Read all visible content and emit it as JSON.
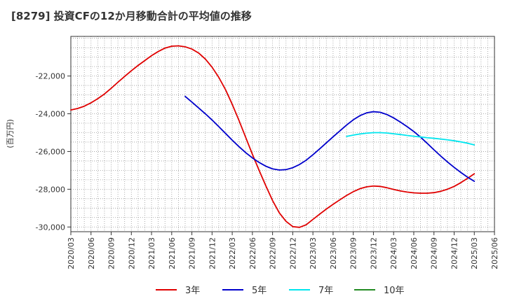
{
  "chart_data": {
    "type": "line",
    "title": "[8279]  投資CFの12か月移動合計の平均値の推移",
    "ylabel": "(百万円)",
    "xlabel": "",
    "ylim": [
      -30250,
      -19900
    ],
    "yticks": [
      -22000,
      -24000,
      -26000,
      -28000,
      -30000
    ],
    "ytick_labels": [
      "-22,000",
      "-24,000",
      "-26,000",
      "-28,000",
      "-30,000"
    ],
    "xticks": [
      "2020/03",
      "2020/06",
      "2020/09",
      "2020/12",
      "2021/03",
      "2021/06",
      "2021/09",
      "2021/12",
      "2022/03",
      "2022/06",
      "2022/09",
      "2022/12",
      "2023/03",
      "2023/06",
      "2023/09",
      "2023/12",
      "2024/03",
      "2024/06",
      "2024/09",
      "2024/12",
      "2025/03",
      "2025/06"
    ],
    "grid": true,
    "legend_position": "bottom",
    "series": [
      {
        "name": "3年",
        "color": "#e00000",
        "points": [
          [
            "2020/03",
            -23800
          ],
          [
            "2020/04",
            -23720
          ],
          [
            "2020/05",
            -23600
          ],
          [
            "2020/06",
            -23420
          ],
          [
            "2020/07",
            -23200
          ],
          [
            "2020/08",
            -22950
          ],
          [
            "2020/09",
            -22650
          ],
          [
            "2020/10",
            -22330
          ],
          [
            "2020/11",
            -22020
          ],
          [
            "2020/12",
            -21720
          ],
          [
            "2021/01",
            -21440
          ],
          [
            "2021/02",
            -21180
          ],
          [
            "2021/03",
            -20920
          ],
          [
            "2021/04",
            -20700
          ],
          [
            "2021/05",
            -20520
          ],
          [
            "2021/06",
            -20420
          ],
          [
            "2021/07",
            -20400
          ],
          [
            "2021/08",
            -20450
          ],
          [
            "2021/09",
            -20570
          ],
          [
            "2021/10",
            -20780
          ],
          [
            "2021/11",
            -21100
          ],
          [
            "2021/12",
            -21530
          ],
          [
            "2022/01",
            -22070
          ],
          [
            "2022/02",
            -22720
          ],
          [
            "2022/03",
            -23500
          ],
          [
            "2022/04",
            -24350
          ],
          [
            "2022/05",
            -25250
          ],
          [
            "2022/06",
            -26150
          ],
          [
            "2022/07",
            -27000
          ],
          [
            "2022/08",
            -27820
          ],
          [
            "2022/09",
            -28600
          ],
          [
            "2022/10",
            -29250
          ],
          [
            "2022/11",
            -29700
          ],
          [
            "2022/12",
            -29980
          ],
          [
            "2023/01",
            -30020
          ],
          [
            "2023/02",
            -29880
          ],
          [
            "2023/03",
            -29600
          ],
          [
            "2023/04",
            -29320
          ],
          [
            "2023/05",
            -29050
          ],
          [
            "2023/06",
            -28800
          ],
          [
            "2023/07",
            -28560
          ],
          [
            "2023/08",
            -28330
          ],
          [
            "2023/09",
            -28130
          ],
          [
            "2023/10",
            -27970
          ],
          [
            "2023/11",
            -27870
          ],
          [
            "2023/12",
            -27830
          ],
          [
            "2024/01",
            -27850
          ],
          [
            "2024/02",
            -27920
          ],
          [
            "2024/03",
            -28010
          ],
          [
            "2024/04",
            -28090
          ],
          [
            "2024/05",
            -28150
          ],
          [
            "2024/06",
            -28190
          ],
          [
            "2024/07",
            -28210
          ],
          [
            "2024/08",
            -28210
          ],
          [
            "2024/09",
            -28180
          ],
          [
            "2024/10",
            -28110
          ],
          [
            "2024/11",
            -28000
          ],
          [
            "2024/12",
            -27850
          ],
          [
            "2025/01",
            -27650
          ],
          [
            "2025/02",
            -27420
          ],
          [
            "2025/03",
            -27180
          ]
        ]
      },
      {
        "name": "5年",
        "color": "#0000cc",
        "points": [
          [
            "2021/08",
            -23080
          ],
          [
            "2021/09",
            -23380
          ],
          [
            "2021/10",
            -23690
          ],
          [
            "2021/11",
            -24000
          ],
          [
            "2021/12",
            -24330
          ],
          [
            "2022/01",
            -24680
          ],
          [
            "2022/02",
            -25040
          ],
          [
            "2022/03",
            -25400
          ],
          [
            "2022/04",
            -25740
          ],
          [
            "2022/05",
            -26060
          ],
          [
            "2022/06",
            -26340
          ],
          [
            "2022/07",
            -26580
          ],
          [
            "2022/08",
            -26780
          ],
          [
            "2022/09",
            -26920
          ],
          [
            "2022/10",
            -26980
          ],
          [
            "2022/11",
            -26960
          ],
          [
            "2022/12",
            -26860
          ],
          [
            "2023/01",
            -26690
          ],
          [
            "2023/02",
            -26460
          ],
          [
            "2023/03",
            -26170
          ],
          [
            "2023/04",
            -25860
          ],
          [
            "2023/05",
            -25540
          ],
          [
            "2023/06",
            -25220
          ],
          [
            "2023/07",
            -24910
          ],
          [
            "2023/08",
            -24600
          ],
          [
            "2023/09",
            -24320
          ],
          [
            "2023/10",
            -24100
          ],
          [
            "2023/11",
            -23950
          ],
          [
            "2023/12",
            -23890
          ],
          [
            "2024/01",
            -23920
          ],
          [
            "2024/02",
            -24040
          ],
          [
            "2024/03",
            -24220
          ],
          [
            "2024/04",
            -24440
          ],
          [
            "2024/05",
            -24680
          ],
          [
            "2024/06",
            -24940
          ],
          [
            "2024/07",
            -25240
          ],
          [
            "2024/08",
            -25570
          ],
          [
            "2024/09",
            -25910
          ],
          [
            "2024/10",
            -26240
          ],
          [
            "2024/11",
            -26550
          ],
          [
            "2024/12",
            -26840
          ],
          [
            "2025/01",
            -27110
          ],
          [
            "2025/02",
            -27360
          ],
          [
            "2025/03",
            -27580
          ]
        ]
      },
      {
        "name": "7年",
        "color": "#00e5ee",
        "points": [
          [
            "2023/08",
            -25200
          ],
          [
            "2023/09",
            -25130
          ],
          [
            "2023/10",
            -25070
          ],
          [
            "2023/11",
            -25030
          ],
          [
            "2023/12",
            -25000
          ],
          [
            "2024/01",
            -25000
          ],
          [
            "2024/02",
            -25020
          ],
          [
            "2024/03",
            -25060
          ],
          [
            "2024/04",
            -25100
          ],
          [
            "2024/05",
            -25150
          ],
          [
            "2024/06",
            -25190
          ],
          [
            "2024/07",
            -25230
          ],
          [
            "2024/08",
            -25270
          ],
          [
            "2024/09",
            -25300
          ],
          [
            "2024/10",
            -25340
          ],
          [
            "2024/11",
            -25380
          ],
          [
            "2024/12",
            -25430
          ],
          [
            "2025/01",
            -25490
          ],
          [
            "2025/02",
            -25560
          ],
          [
            "2025/03",
            -25650
          ]
        ]
      },
      {
        "name": "10年",
        "color": "#228b22",
        "points": []
      }
    ]
  }
}
